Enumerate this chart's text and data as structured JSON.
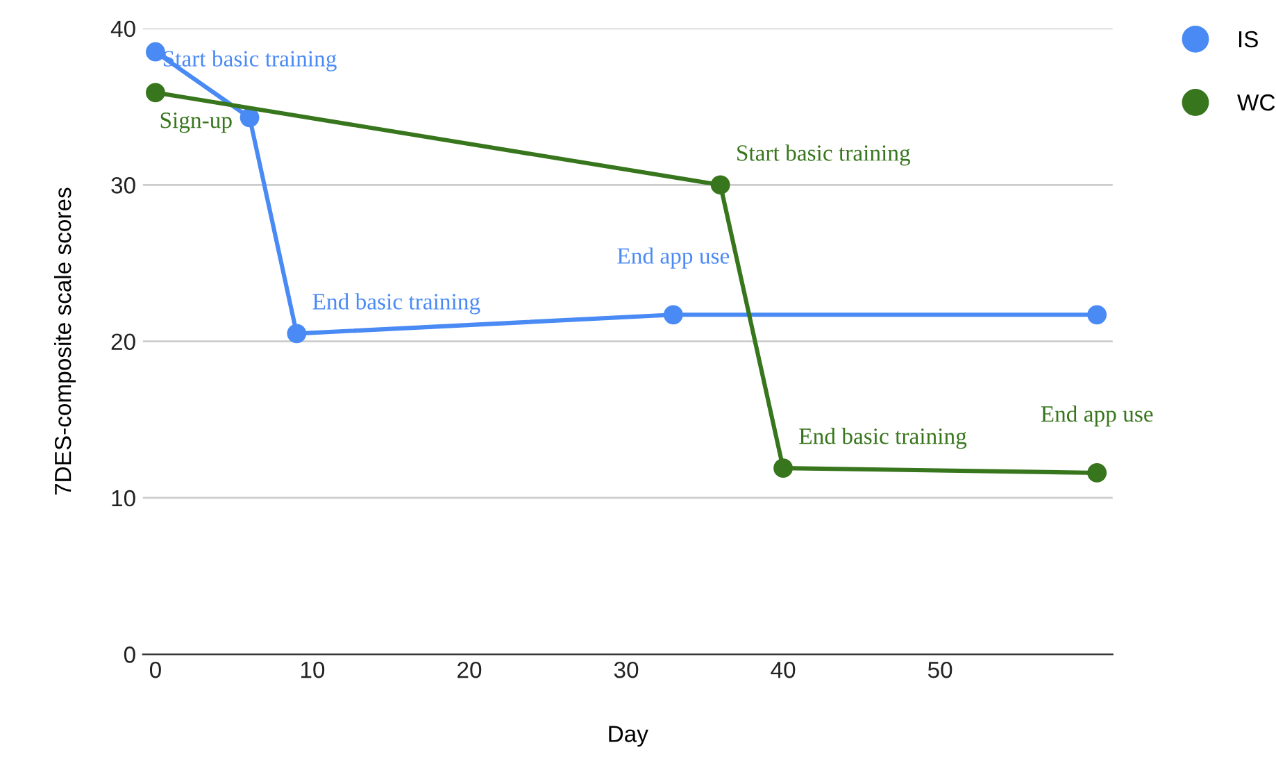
{
  "chart_data": {
    "type": "line",
    "xlabel": "Day",
    "ylabel": "7DES-composite scale scores",
    "series": [
      {
        "name": "IS",
        "color": "#4a8af4",
        "x": [
          0,
          6,
          9,
          33,
          60
        ],
        "values": [
          38.5,
          34.3,
          20.5,
          21.7,
          21.7
        ]
      },
      {
        "name": "WC",
        "color": "#38761d",
        "x": [
          0,
          36,
          40,
          60
        ],
        "values": [
          35.9,
          30,
          11.9,
          11.6
        ]
      }
    ],
    "annotations": [
      {
        "text": "Sign-up",
        "x": 0,
        "y": 35.9
      },
      {
        "text": "Start basic training",
        "x": 6,
        "y": 34.3
      },
      {
        "text": "End basic training",
        "x": 9,
        "y": 20.5
      },
      {
        "text": "End app use",
        "x": 33,
        "y": 21.7
      },
      {
        "text": "Start basic training",
        "x": 36,
        "y": 30
      },
      {
        "text": "End basic training",
        "x": 40,
        "y": 11.9
      },
      {
        "text": "End app use",
        "x": 60,
        "y": 11.6
      }
    ],
    "xlim": [
      -0.8,
      61
    ],
    "xticks": [
      0,
      10,
      20,
      30,
      40,
      50
    ],
    "ylim": [
      0,
      40
    ],
    "yticks": [
      0,
      10,
      20,
      30,
      40
    ],
    "grid": "y",
    "legend": "top right",
    "marker": "circle",
    "line_style": "solid"
  }
}
